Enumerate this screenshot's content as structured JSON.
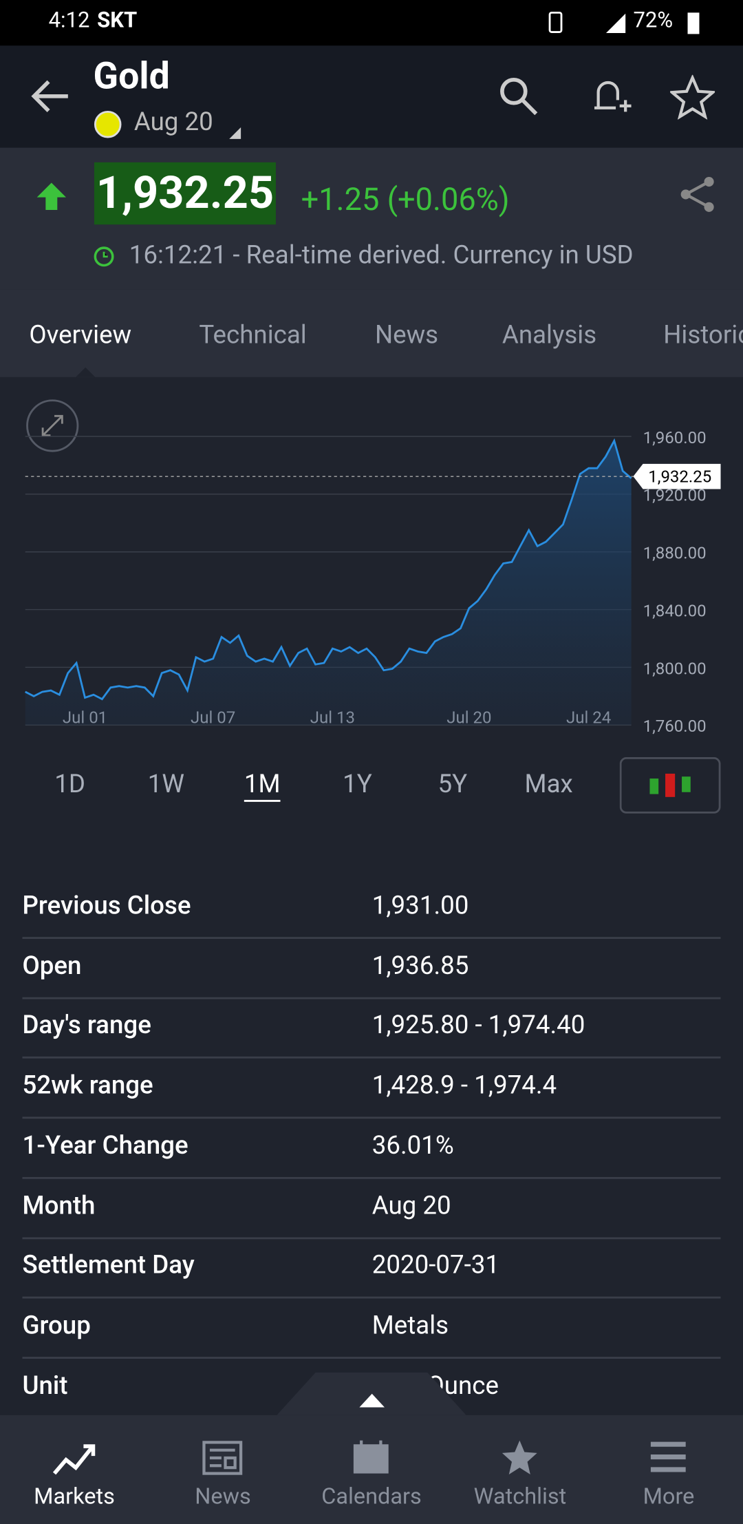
{
  "status_bar": {
    "time": "4:12",
    "carrier": "SKT",
    "battery": "72%"
  },
  "header": {
    "title": "Gold",
    "contract": "Aug 20"
  },
  "quote": {
    "price": "1,932.25",
    "change": "+1.25 (+0.06%)",
    "time_note": "16:12:21 - Real-time derived. Currency in USD"
  },
  "tabs": [
    "Overview",
    "Technical",
    "News",
    "Analysis",
    "Historical"
  ],
  "chart": {
    "type": "line",
    "color": "#2a8ee0",
    "ylim": [
      1760,
      1993
    ],
    "yticks": [
      {
        "value": 1760,
        "label": "1,760.00"
      },
      {
        "value": 1800,
        "label": "1,800.00"
      },
      {
        "value": 1840,
        "label": "1,840.00"
      },
      {
        "value": 1880,
        "label": "1,880.00"
      },
      {
        "value": 1920,
        "label": "1,920.00"
      },
      {
        "value": 1960,
        "label": "1,960.00"
      }
    ],
    "xticks": [
      {
        "value": 7,
        "label": "Jul 01"
      },
      {
        "value": 22,
        "label": "Jul 07"
      },
      {
        "value": 36,
        "label": "Jul 13"
      },
      {
        "value": 52,
        "label": "Jul 20"
      },
      {
        "value": 66,
        "label": "Jul 24"
      }
    ],
    "current": {
      "value": 1932.25,
      "label": "1,932.25"
    },
    "values": [
      1783,
      1780,
      1783,
      1784,
      1781,
      1796,
      1803,
      1779,
      1781,
      1778,
      1786,
      1787,
      1786,
      1787,
      1786,
      1780,
      1796,
      1798,
      1795,
      1784,
      1807,
      1804,
      1806,
      1821,
      1817,
      1822,
      1808,
      1804,
      1806,
      1804,
      1814,
      1801,
      1810,
      1813,
      1802,
      1803,
      1813,
      1811,
      1814,
      1810,
      1813,
      1807,
      1798,
      1799,
      1804,
      1813,
      1811,
      1810,
      1818,
      1821,
      1823,
      1827,
      1841,
      1846,
      1854,
      1864,
      1872,
      1873,
      1884,
      1895,
      1884,
      1887,
      1893,
      1899,
      1916,
      1934,
      1938,
      1938,
      1946,
      1957,
      1936,
      1931
    ]
  },
  "ranges": [
    "1D",
    "1W",
    "1M",
    "1Y",
    "5Y",
    "Max"
  ],
  "stats": [
    {
      "label": "Previous Close",
      "value": "1,931.00"
    },
    {
      "label": "Open",
      "value": "1,936.85"
    },
    {
      "label": "Day's range",
      "value": "1,925.80 - 1,974.40"
    },
    {
      "label": "52wk range",
      "value": "1,428.9 - 1,974.4"
    },
    {
      "label": "1-Year Change",
      "value": "36.01%"
    },
    {
      "label": "Month",
      "value": "Aug 20"
    },
    {
      "label": "Settlement Day",
      "value": "2020-07-31"
    },
    {
      "label": "Group",
      "value": "Metals"
    },
    {
      "label": "Unit",
      "value": "Troy Ounce"
    }
  ],
  "nav": [
    "Markets",
    "News",
    "Calendars",
    "Watchlist",
    "More"
  ]
}
